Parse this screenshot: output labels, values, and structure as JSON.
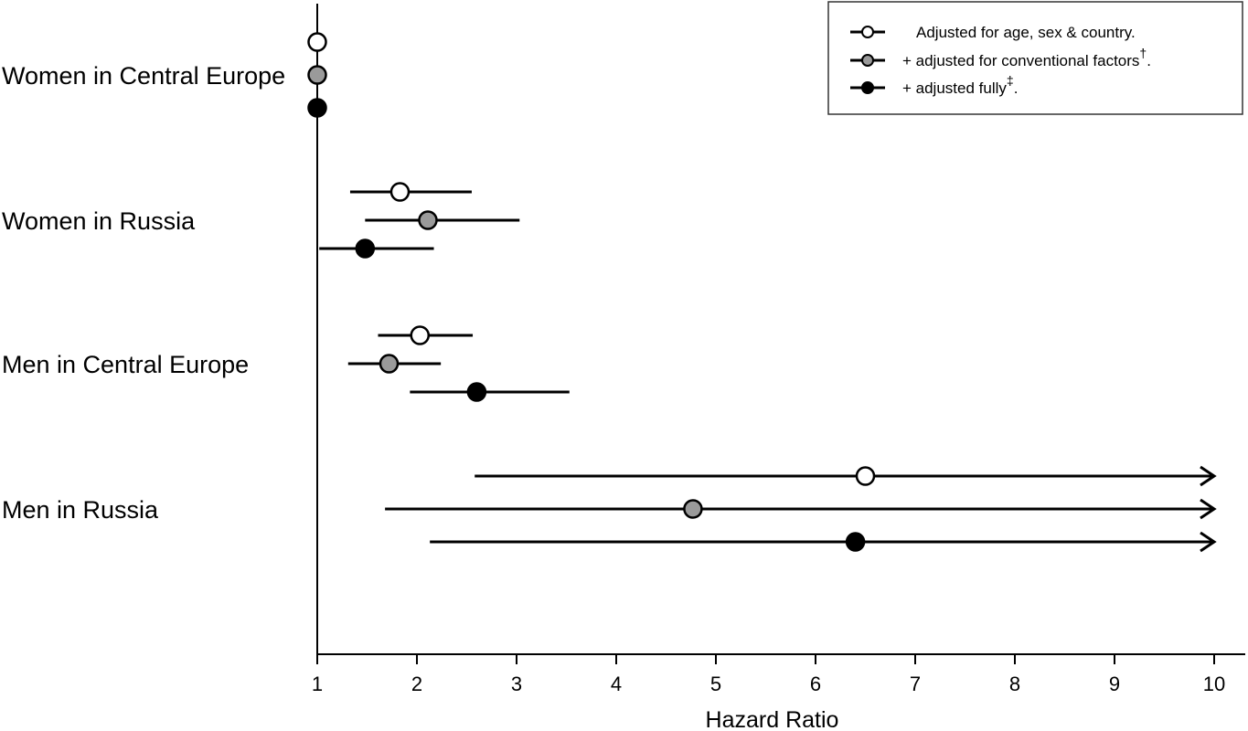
{
  "chart_data": {
    "type": "forest",
    "xlabel": "Hazard Ratio",
    "xlim": [
      1,
      10
    ],
    "xticks": [
      "1",
      "2",
      "3",
      "4",
      "5",
      "6",
      "7",
      "8",
      "9",
      "10"
    ],
    "categories": [
      "Women in Central Europe",
      "Women in Russia",
      "Men in Central Europe",
      "Men in Russia"
    ],
    "series": [
      {
        "name": "Adjusted for age, sex & country.",
        "marker_color": "#ffffff",
        "points": [
          {
            "category": "Women in Central Europe",
            "hr": 1.0,
            "ci_low": 1.0,
            "ci_high": 1.0,
            "ci_high_truncated": false
          },
          {
            "category": "Women in Russia",
            "hr": 1.83,
            "ci_low": 1.33,
            "ci_high": 2.55,
            "ci_high_truncated": false
          },
          {
            "category": "Men in Central Europe",
            "hr": 2.03,
            "ci_low": 1.61,
            "ci_high": 2.56,
            "ci_high_truncated": false
          },
          {
            "category": "Men in Russia",
            "hr": 6.5,
            "ci_low": 2.58,
            "ci_high": 10,
            "ci_high_truncated": true
          }
        ]
      },
      {
        "name": "+ adjusted for conventional factors",
        "name_sup": "†",
        "name_suffix": ".",
        "marker_color": "#9a9a9a",
        "points": [
          {
            "category": "Women in Central Europe",
            "hr": 1.0,
            "ci_low": 1.0,
            "ci_high": 1.0,
            "ci_high_truncated": false
          },
          {
            "category": "Women in Russia",
            "hr": 2.11,
            "ci_low": 1.48,
            "ci_high": 3.03,
            "ci_high_truncated": false
          },
          {
            "category": "Men in Central Europe",
            "hr": 1.72,
            "ci_low": 1.31,
            "ci_high": 2.24,
            "ci_high_truncated": false
          },
          {
            "category": "Men in Russia",
            "hr": 4.77,
            "ci_low": 1.68,
            "ci_high": 10,
            "ci_high_truncated": true
          }
        ]
      },
      {
        "name": "+ adjusted fully",
        "name_sup": "‡",
        "name_suffix": ".",
        "marker_color": "#000000",
        "points": [
          {
            "category": "Women in Central Europe",
            "hr": 1.0,
            "ci_low": 1.0,
            "ci_high": 1.0,
            "ci_high_truncated": false
          },
          {
            "category": "Women in Russia",
            "hr": 1.48,
            "ci_low": 1.02,
            "ci_high": 2.17,
            "ci_high_truncated": false
          },
          {
            "category": "Men in Central Europe",
            "hr": 2.6,
            "ci_low": 1.93,
            "ci_high": 3.53,
            "ci_high_truncated": false
          },
          {
            "category": "Men in Russia",
            "hr": 6.4,
            "ci_low": 2.13,
            "ci_high": 10,
            "ci_high_truncated": true
          }
        ]
      }
    ],
    "legend_position": "top-right",
    "grid": false
  }
}
